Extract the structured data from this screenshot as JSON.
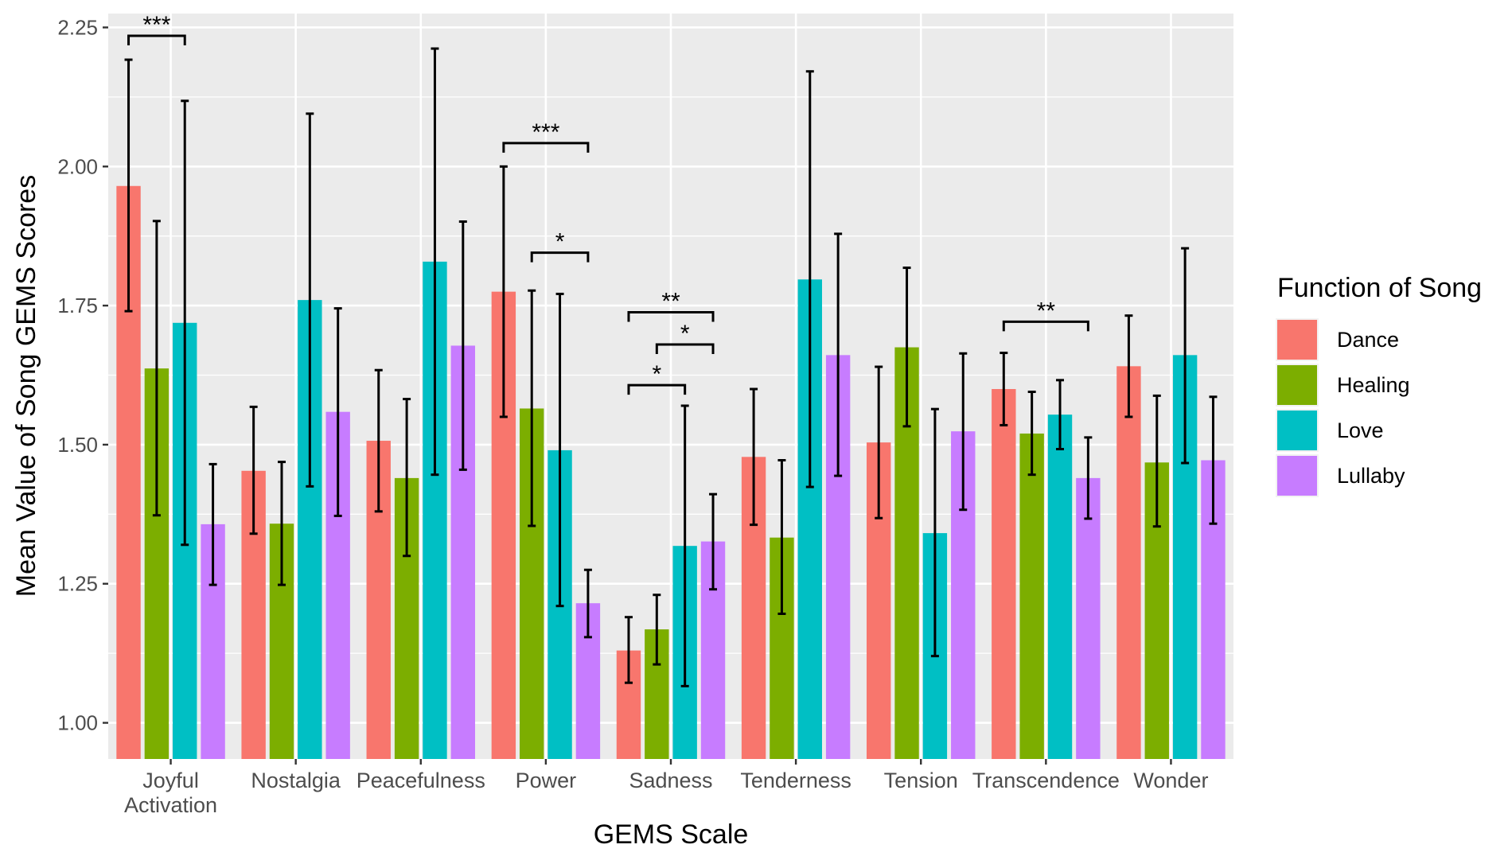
{
  "chart_data": {
    "type": "bar",
    "title": "",
    "xlabel": "GEMS Scale",
    "ylabel": "Mean Value of Song GEMS Scores",
    "ylim": [
      0.935,
      2.275
    ],
    "y_ticks": [
      1.0,
      1.25,
      1.5,
      1.75,
      2.0,
      2.25
    ],
    "y_tick_labels": [
      "1.00",
      "1.25",
      "1.50",
      "1.75",
      "2.00",
      "2.25"
    ],
    "grid": true,
    "legend": {
      "title": "Function of Song",
      "position": "right"
    },
    "categories": [
      [
        "Joyful",
        "Activation"
      ],
      [
        "Nostalgia"
      ],
      [
        "Peacefulness"
      ],
      [
        "Power"
      ],
      [
        "Sadness"
      ],
      [
        "Tenderness"
      ],
      [
        "Tension"
      ],
      [
        "Transcendence"
      ],
      [
        "Wonder"
      ]
    ],
    "series": [
      {
        "name": "Dance",
        "color": "#F8766D",
        "values": [
          1.965,
          1.453,
          1.507,
          1.775,
          1.13,
          1.478,
          1.504,
          1.6,
          1.641
        ],
        "err_low": [
          1.74,
          1.34,
          1.38,
          1.55,
          1.072,
          1.356,
          1.368,
          1.535,
          1.55
        ],
        "err_high": [
          2.192,
          1.568,
          1.634,
          2.0,
          1.19,
          1.6,
          1.64,
          1.665,
          1.732
        ]
      },
      {
        "name": "Healing",
        "color": "#7CAE00",
        "values": [
          1.637,
          1.358,
          1.44,
          1.565,
          1.168,
          1.333,
          1.675,
          1.52,
          1.468
        ],
        "err_low": [
          1.373,
          1.248,
          1.3,
          1.354,
          1.105,
          1.196,
          1.533,
          1.446,
          1.353
        ],
        "err_high": [
          1.902,
          1.469,
          1.582,
          1.777,
          1.23,
          1.472,
          1.818,
          1.595,
          1.588
        ]
      },
      {
        "name": "Love",
        "color": "#00BFC4",
        "values": [
          1.719,
          1.76,
          1.829,
          1.49,
          1.318,
          1.797,
          1.341,
          1.554,
          1.661
        ],
        "err_low": [
          1.32,
          1.425,
          1.446,
          1.21,
          1.066,
          1.424,
          1.12,
          1.492,
          1.467
        ],
        "err_high": [
          2.118,
          2.095,
          2.212,
          1.771,
          1.57,
          2.171,
          1.564,
          1.616,
          1.853
        ]
      },
      {
        "name": "Lullaby",
        "color": "#C77CFF",
        "values": [
          1.357,
          1.559,
          1.678,
          1.215,
          1.326,
          1.661,
          1.524,
          1.44,
          1.472
        ],
        "err_low": [
          1.248,
          1.372,
          1.455,
          1.154,
          1.24,
          1.444,
          1.383,
          1.367,
          1.358
        ],
        "err_high": [
          1.465,
          1.745,
          1.901,
          1.275,
          1.411,
          1.879,
          1.664,
          1.513,
          1.586
        ]
      }
    ],
    "significance": [
      {
        "category": 0,
        "from": "Dance",
        "to": "Love",
        "y": 2.235,
        "label": "***"
      },
      {
        "category": 3,
        "from": "Dance",
        "to": "Lullaby",
        "y": 2.042,
        "label": "***"
      },
      {
        "category": 3,
        "from": "Healing",
        "to": "Lullaby",
        "y": 1.845,
        "label": "*"
      },
      {
        "category": 4,
        "from": "Dance",
        "to": "Lullaby",
        "y": 1.738,
        "label": "**"
      },
      {
        "category": 4,
        "from": "Healing",
        "to": "Lullaby",
        "y": 1.68,
        "label": "*"
      },
      {
        "category": 4,
        "from": "Dance",
        "to": "Love",
        "y": 1.607,
        "label": "*"
      },
      {
        "category": 7,
        "from": "Dance",
        "to": "Lullaby",
        "y": 1.721,
        "label": "**"
      }
    ]
  }
}
